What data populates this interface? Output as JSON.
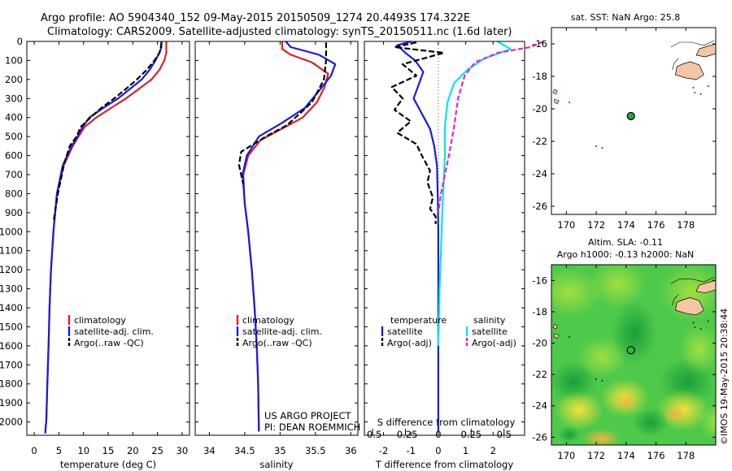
{
  "header": {
    "line1": "Argo profile: AO 5904340_152 09-May-2015 20150509_1274 20.4493S 174.322E",
    "line2": "Climatology: CARS2009. Satellite-adjusted climatology: synTS_20150511.nc (1.6d later)"
  },
  "colors": {
    "clim": "#e02020",
    "sat": "#1a1ae6",
    "argo": "#000000",
    "sal_sat": "#00e5ee",
    "sal_argo": "#e020e0"
  },
  "credit": {
    "line1": "US ARGO PROJECT",
    "line2": "PI: DEAN ROEMMICH"
  },
  "timestamp": "©IMOS 19-May-2015 20:38:44",
  "depth_ticks": [
    "0",
    "100",
    "200",
    "300",
    "400",
    "500",
    "600",
    "700",
    "800",
    "900",
    "1000",
    "1100",
    "1200",
    "1300",
    "1400",
    "1500",
    "1600",
    "1700",
    "1800",
    "1900",
    "2000"
  ],
  "chart_data": [
    {
      "type": "line",
      "id": "temperature",
      "xlabel": "temperature (deg C)",
      "xlim": [
        -1.5,
        31.5
      ],
      "ylim": [
        0,
        2070
      ],
      "xticks": [
        "0",
        "5",
        "10",
        "15",
        "20",
        "25",
        "30"
      ],
      "legend": {
        "position": "lower-center",
        "entries": [
          "climatology",
          "satellite-adj. clim.",
          "Argo(..raw -QC)"
        ]
      },
      "series": [
        {
          "name": "climatology",
          "style": "clim",
          "x": [
            26.8,
            26.8,
            26.8,
            26.4,
            25.4,
            23.8,
            21.2,
            18.6,
            15.6,
            12.6,
            10.2,
            9.0,
            7.8,
            6.0,
            4.6,
            3.9,
            3.4,
            3.1,
            2.9,
            2.65,
            2.45,
            2.35,
            2.3,
            2.25
          ],
          "y": [
            0,
            30,
            60,
            100,
            150,
            200,
            250,
            300,
            350,
            400,
            450,
            500,
            550,
            650,
            800,
            1000,
            1200,
            1400,
            1600,
            1800,
            2000,
            2020,
            2040,
            2060
          ]
        },
        {
          "name": "satellite-adj. clim.",
          "style": "sat",
          "x": [
            25.8,
            25.8,
            25.4,
            24.6,
            23.4,
            21.8,
            19.4,
            17.0,
            14.0,
            11.2,
            9.8,
            8.8,
            7.6,
            5.8,
            4.6,
            3.9,
            3.4,
            3.1,
            2.9,
            2.65,
            2.45,
            2.35,
            2.3,
            2.25
          ],
          "y": [
            0,
            30,
            60,
            100,
            150,
            200,
            250,
            300,
            350,
            400,
            450,
            500,
            550,
            650,
            800,
            1000,
            1200,
            1400,
            1600,
            1800,
            2000,
            2020,
            2040,
            2060
          ]
        },
        {
          "name": "Argo(..raw -QC)",
          "style": "argo",
          "x": [
            25.8,
            25.7,
            25.4,
            24.4,
            22.8,
            20.8,
            18.6,
            16.2,
            13.6,
            11.4,
            9.4,
            8.6,
            7.2,
            6.0,
            4.8,
            3.9
          ],
          "y": [
            5,
            30,
            60,
            100,
            150,
            200,
            250,
            300,
            350,
            400,
            450,
            500,
            550,
            650,
            800,
            950
          ]
        }
      ]
    },
    {
      "type": "line",
      "id": "salinity",
      "xlabel": "salinity",
      "xlim": [
        33.8,
        36.1
      ],
      "ylim": [
        0,
        2070
      ],
      "xticks": [
        "34",
        "34.5",
        "35",
        "35.5",
        "36"
      ],
      "legend": {
        "position": "lower-center",
        "entries": [
          "climatology",
          "satellite-adj. clim.",
          "Argo(..raw -QC)"
        ]
      },
      "series": [
        {
          "name": "climatology",
          "style": "clim",
          "x": [
            35.03,
            35.03,
            35.15,
            35.45,
            35.68,
            35.63,
            35.52,
            35.32,
            35.02,
            34.72,
            34.55,
            34.48,
            34.5,
            34.55,
            34.6,
            34.64,
            34.67,
            34.69,
            34.7
          ],
          "y": [
            0,
            40,
            70,
            110,
            170,
            240,
            320,
            400,
            460,
            520,
            600,
            700,
            850,
            1000,
            1200,
            1400,
            1600,
            1800,
            2050
          ]
        },
        {
          "name": "satellite-adj. clim.",
          "style": "sat",
          "x": [
            35.08,
            35.15,
            35.55,
            35.78,
            35.72,
            35.55,
            35.35,
            35.02,
            34.7,
            34.53,
            34.47,
            34.5,
            34.55,
            34.6,
            34.64,
            34.67,
            34.69,
            34.7
          ],
          "y": [
            0,
            30,
            70,
            120,
            180,
            260,
            350,
            430,
            500,
            600,
            700,
            850,
            1000,
            1200,
            1400,
            1600,
            1800,
            2050
          ]
        },
        {
          "name": "Argo(..raw -QC)",
          "style": "argo",
          "x": [
            35.65,
            35.65,
            35.65,
            35.62,
            35.45,
            35.1,
            34.8,
            34.45,
            34.42,
            34.48
          ],
          "y": [
            5,
            50,
            100,
            200,
            320,
            440,
            500,
            580,
            650,
            750
          ]
        }
      ]
    },
    {
      "type": "line",
      "id": "difference",
      "xlabel": "T difference from climatology",
      "toplabel": "S difference from climatology",
      "xlim": [
        -2.7,
        3.15
      ],
      "ylim": [
        0,
        2070
      ],
      "xticks": [
        "-2",
        "-1",
        "0",
        "1",
        "2"
      ],
      "sticks": [
        "-0.5",
        "-0.25",
        "0",
        "0.25",
        "0.5"
      ],
      "legend": {
        "position": "lower-center",
        "temperature_title": "temperature",
        "salinity_title": "salinity",
        "temperature_entries": [
          "satellite",
          "Argo(-adj)"
        ],
        "salinity_entries": [
          "satellite",
          "Argo(-adj)"
        ]
      },
      "series": [
        {
          "name": "temperature satellite",
          "style": "sat",
          "x": [
            -1.0,
            -1.5,
            -1.2,
            -0.85,
            -0.55,
            -0.7,
            -0.9,
            -0.6,
            -0.3,
            -0.15,
            -0.05,
            -0.02,
            0,
            0,
            0,
            0
          ],
          "y": [
            0,
            20,
            60,
            100,
            160,
            220,
            300,
            380,
            460,
            550,
            650,
            800,
            1000,
            1400,
            1800,
            2050
          ]
        },
        {
          "name": "temperature Argo(-adj)",
          "style": "argo",
          "x": [
            -0.8,
            -1.6,
            0.2,
            -1.3,
            -0.8,
            -1.7,
            -1.3,
            -1.6,
            -1.0,
            -1.5,
            -0.8,
            -0.6,
            -0.3,
            -0.4,
            -0.2,
            -0.3,
            -0.1,
            -0.1
          ],
          "y": [
            5,
            30,
            60,
            120,
            180,
            240,
            300,
            360,
            420,
            480,
            540,
            600,
            680,
            740,
            820,
            880,
            920,
            960
          ]
        },
        {
          "name": "salinity satellite",
          "style": "sal_sat",
          "x": [
            0.45,
            0.55,
            0.35,
            0.22,
            0.12,
            0.07,
            0.05,
            0.05,
            0.04,
            0.03,
            0.02,
            0.01,
            0
          ],
          "y": [
            0,
            40,
            90,
            150,
            220,
            320,
            450,
            600,
            750,
            900,
            1100,
            1300,
            1600
          ]
        },
        {
          "name": "salinity Argo(-adj)",
          "style": "sal_argo",
          "x": [
            0.8,
            0.7,
            0.45,
            0.28,
            0.2,
            0.15,
            0.12,
            0.08,
            0.05,
            0.02,
            0
          ],
          "y": [
            0,
            30,
            60,
            110,
            180,
            300,
            450,
            600,
            700,
            800,
            900
          ]
        }
      ]
    },
    {
      "type": "scatter",
      "id": "sst_map",
      "title": "sat. SST: NaN Argo: 25.8",
      "xlim": [
        169,
        180
      ],
      "ylim": [
        -26.5,
        -15
      ],
      "xticks": [
        "170",
        "172",
        "174",
        "176",
        "178"
      ],
      "yticks": [
        "-16",
        "-18",
        "-20",
        "-22",
        "-24",
        "-26"
      ],
      "points": [
        {
          "x": 174.322,
          "y": -20.4493
        }
      ]
    },
    {
      "type": "heatmap",
      "id": "sla_map",
      "title": "Altim. SLA: -0.11",
      "subtitle": "Argo h1000: -0.13 h2000: NaN",
      "xlim": [
        169,
        180
      ],
      "ylim": [
        -26.5,
        -15
      ],
      "xticks": [
        "170",
        "172",
        "174",
        "176",
        "178"
      ],
      "yticks": [
        "-16",
        "-18",
        "-20",
        "-22",
        "-24",
        "-26"
      ],
      "points": [
        {
          "x": 174.322,
          "y": -20.4493
        }
      ]
    }
  ]
}
